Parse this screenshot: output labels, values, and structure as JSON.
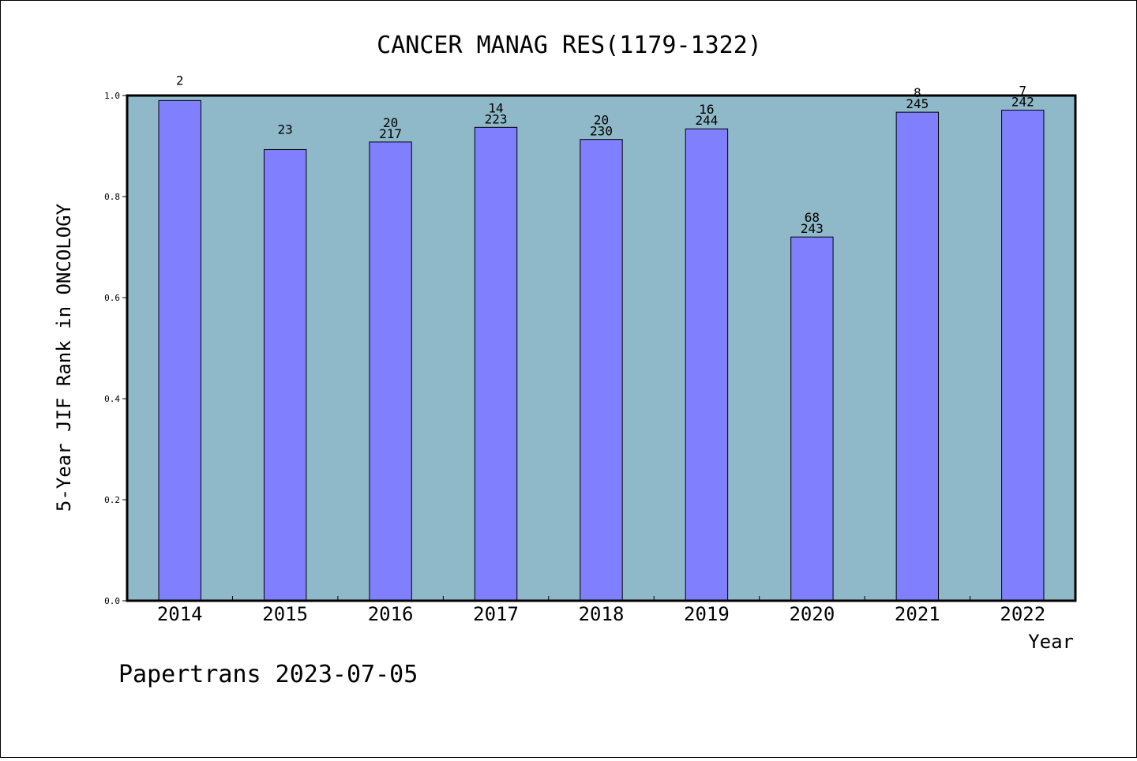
{
  "chart_data": {
    "type": "bar",
    "title": "CANCER MANAG RES(1179-1322)",
    "xlabel": "Year",
    "ylabel": "5-Year JIF Rank in ONCOLOGY",
    "ylim": [
      0,
      1.0
    ],
    "yticks": [
      "0.0",
      "0.2",
      "0.4",
      "0.6",
      "0.8",
      "1.0"
    ],
    "categories": [
      "2014",
      "2015",
      "2016",
      "2017",
      "2018",
      "2019",
      "2020",
      "2021",
      "2022"
    ],
    "values": [
      0.99,
      0.893,
      0.908,
      0.937,
      0.913,
      0.934,
      0.72,
      0.967,
      0.971
    ],
    "rank_labels": [
      "2",
      "23",
      "20",
      "14",
      "20",
      "16",
      "68",
      "8",
      "7"
    ],
    "total_labels": [
      "",
      "",
      "217",
      "223",
      "230",
      "244",
      "243",
      "245",
      "242"
    ],
    "grid": false,
    "plot_background": "#8fb8c8",
    "bar_color": "#8080ff"
  },
  "footer": {
    "text": "Papertrans 2023-07-05"
  }
}
